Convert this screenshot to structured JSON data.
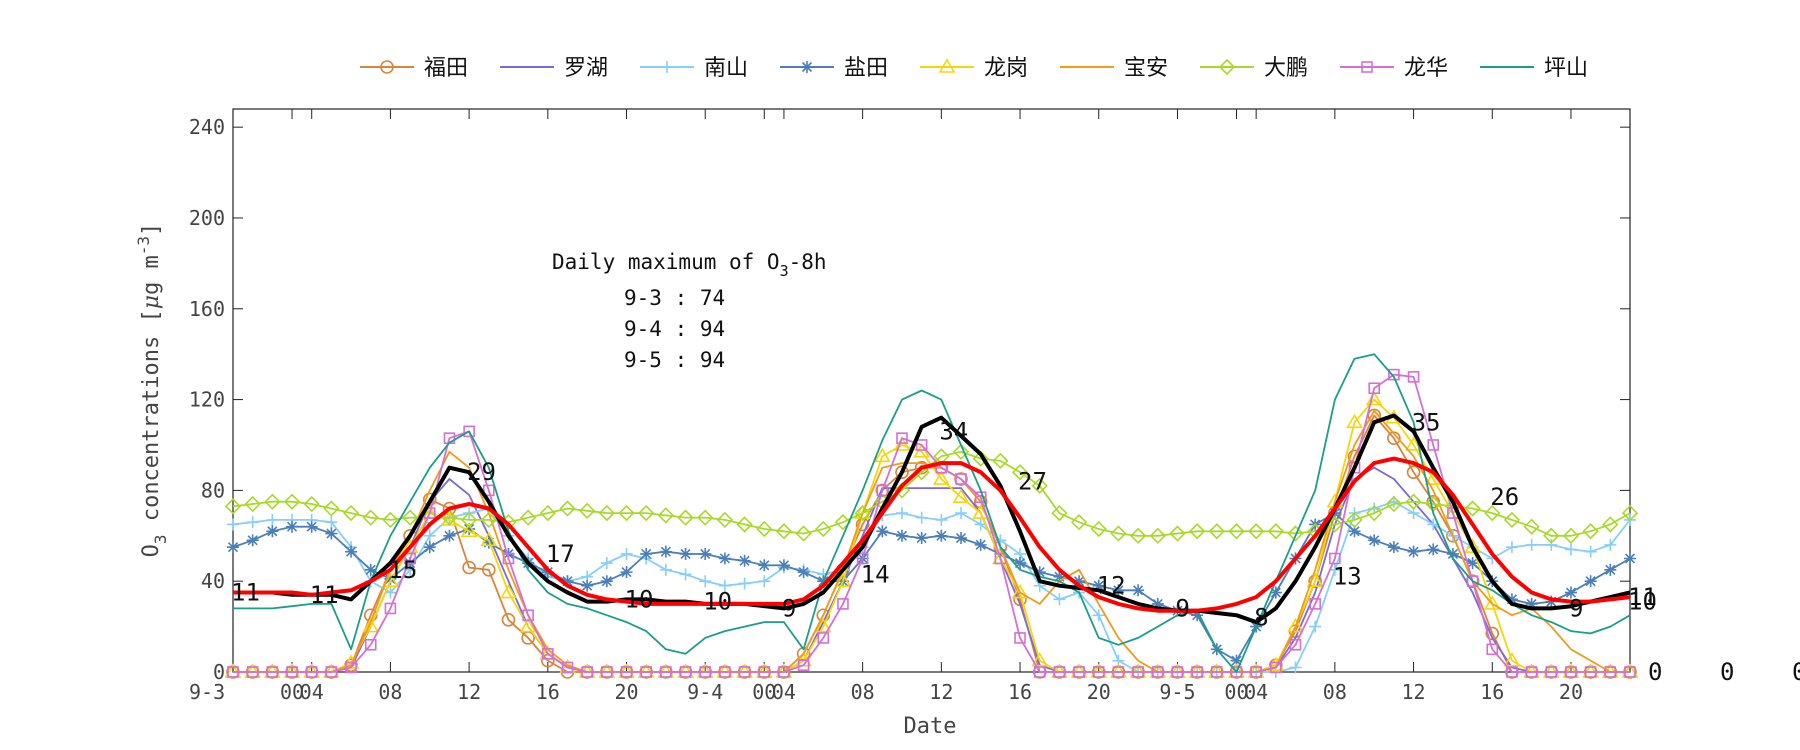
{
  "chart_data": {
    "type": "line",
    "xlabel": "Date",
    "ylabel_main": "O",
    "ylabel_sub": "3",
    "ylabel_rest": " concentrations [",
    "ylabel_mu": "μ",
    "ylabel_unit": "g m",
    "ylabel_sup": "-3",
    "ylabel_close": "]",
    "ylim": [
      0,
      248
    ],
    "yticks": [
      0,
      40,
      80,
      120,
      160,
      200,
      240
    ],
    "xlim": [
      0,
      71
    ],
    "xticks": [
      {
        "x": 0,
        "label": "9-3"
      },
      {
        "x": 3,
        "label": "00"
      },
      {
        "x": 4,
        "label": "04"
      },
      {
        "x": 8,
        "label": "08"
      },
      {
        "x": 12,
        "label": "12"
      },
      {
        "x": 16,
        "label": "16"
      },
      {
        "x": 20,
        "label": "20"
      },
      {
        "x": 24,
        "label": "9-4"
      },
      {
        "x": 27,
        "label": "00"
      },
      {
        "x": 28,
        "label": "04"
      },
      {
        "x": 32,
        "label": "08"
      },
      {
        "x": 36,
        "label": "12"
      },
      {
        "x": 40,
        "label": "16"
      },
      {
        "x": 44,
        "label": "20"
      },
      {
        "x": 48,
        "label": "9-5"
      },
      {
        "x": 51,
        "label": "00"
      },
      {
        "x": 52,
        "label": "04"
      },
      {
        "x": 56,
        "label": "08"
      },
      {
        "x": 60,
        "label": "12"
      },
      {
        "x": 64,
        "label": "16"
      },
      {
        "x": 68,
        "label": "20"
      }
    ],
    "grid": false,
    "legend_position": "top",
    "annotation": {
      "title_main": "Daily maximum of O",
      "title_sub": "3",
      "title_rest": "-8h",
      "lines": [
        "9-3 : 74",
        "9-4 : 94",
        "9-5 : 94"
      ]
    },
    "series": [
      {
        "name": "福田",
        "color": "#d9843b",
        "marker": "circle",
        "values": [
          0,
          0,
          0,
          0,
          0,
          0,
          3,
          25,
          45,
          60,
          76,
          72,
          46,
          45,
          23,
          15,
          5,
          0,
          0,
          0,
          0,
          0,
          0,
          0,
          0,
          0,
          0,
          0,
          0,
          8,
          25,
          45,
          65,
          80,
          88,
          90,
          90,
          85,
          75,
          55,
          32,
          0,
          0,
          0,
          0,
          0,
          0,
          0,
          0,
          0,
          0,
          0,
          0,
          3,
          18,
          40,
          70,
          95,
          113,
          103,
          88,
          75,
          60,
          40,
          17,
          0,
          0,
          0,
          0,
          0,
          0,
          0,
          0,
          0,
          0,
          0,
          0,
          0,
          6
        ]
      },
      {
        "name": "罗湖",
        "color": "#7b68d9",
        "marker": "none",
        "values": [
          0,
          0,
          0,
          0,
          0,
          0,
          2,
          20,
          40,
          55,
          75,
          85,
          78,
          60,
          40,
          20,
          8,
          2,
          0,
          0,
          0,
          0,
          0,
          0,
          0,
          0,
          0,
          0,
          0,
          5,
          22,
          40,
          60,
          81,
          81,
          81,
          81,
          81,
          70,
          50,
          30,
          3,
          0,
          0,
          0,
          0,
          0,
          0,
          0,
          0,
          0,
          0,
          0,
          2,
          15,
          35,
          65,
          85,
          90,
          85,
          75,
          65,
          50,
          35,
          15,
          2,
          0,
          0,
          0,
          0,
          0,
          0,
          0,
          0,
          0,
          0,
          0,
          0,
          4
        ]
      },
      {
        "name": "南山",
        "color": "#87cefa",
        "marker": "plus",
        "values": [
          65,
          66,
          67,
          67,
          67,
          66,
          55,
          40,
          35,
          45,
          60,
          68,
          70,
          72,
          60,
          50,
          42,
          40,
          42,
          48,
          52,
          50,
          45,
          43,
          40,
          38,
          39,
          40,
          46,
          45,
          43,
          45,
          55,
          69,
          70,
          68,
          67,
          70,
          65,
          58,
          52,
          38,
          32,
          35,
          25,
          5,
          0,
          0,
          0,
          0,
          0,
          0,
          0,
          0,
          2,
          20,
          45,
          70,
          72,
          75,
          70,
          65,
          60,
          55,
          50,
          55,
          56,
          56,
          54,
          53,
          56,
          67,
          64,
          40,
          20,
          12,
          0,
          0
        ]
      },
      {
        "name": "盐田",
        "color": "#4a7fb8",
        "marker": "star",
        "values": [
          55,
          58,
          62,
          64,
          64,
          61,
          53,
          45,
          41,
          48,
          55,
          60,
          63,
          57,
          52,
          48,
          44,
          40,
          38,
          40,
          44,
          52,
          53,
          52,
          52,
          50,
          49,
          47,
          47,
          44,
          40,
          40,
          50,
          62,
          60,
          59,
          60,
          59,
          56,
          52,
          48,
          44,
          42,
          40,
          38,
          36,
          36,
          30,
          27,
          25,
          10,
          5,
          20,
          35,
          50,
          65,
          70,
          62,
          58,
          55,
          53,
          54,
          52,
          48,
          40,
          32,
          30,
          31,
          35,
          40,
          45,
          50,
          52,
          50,
          47,
          40,
          57,
          40
        ]
      },
      {
        "name": "龙岗",
        "color": "#f5d60a",
        "marker": "triangle",
        "values": [
          0,
          0,
          0,
          0,
          0,
          0,
          4,
          20,
          40,
          55,
          70,
          67,
          62,
          58,
          35,
          20,
          8,
          2,
          0,
          0,
          0,
          0,
          0,
          0,
          0,
          0,
          0,
          0,
          0,
          5,
          20,
          40,
          70,
          95,
          100,
          97,
          85,
          77,
          70,
          50,
          35,
          5,
          0,
          0,
          0,
          0,
          0,
          0,
          0,
          0,
          0,
          0,
          0,
          3,
          20,
          40,
          75,
          110,
          120,
          112,
          100,
          85,
          70,
          55,
          30,
          5,
          0,
          0,
          0,
          0,
          0,
          0,
          0,
          0,
          0,
          0,
          0,
          0,
          15
        ]
      },
      {
        "name": "宝安",
        "color": "#f29a1a",
        "marker": "none",
        "values": [
          0,
          0,
          0,
          0,
          0,
          0,
          3,
          22,
          45,
          60,
          80,
          97,
          90,
          70,
          45,
          25,
          10,
          3,
          0,
          0,
          0,
          0,
          0,
          0,
          0,
          0,
          0,
          0,
          0,
          8,
          25,
          45,
          70,
          90,
          92,
          92,
          90,
          85,
          75,
          55,
          35,
          30,
          40,
          45,
          30,
          15,
          5,
          0,
          0,
          0,
          0,
          0,
          0,
          2,
          20,
          45,
          75,
          100,
          115,
          105,
          95,
          80,
          60,
          40,
          30,
          25,
          28,
          20,
          10,
          5,
          0,
          0,
          0,
          0,
          0,
          0,
          0,
          0,
          2
        ]
      },
      {
        "name": "大鹏",
        "color": "#a8d92a",
        "marker": "diamond",
        "values": [
          73,
          74,
          75,
          75,
          74,
          72,
          70,
          68,
          67,
          68,
          68,
          68,
          67,
          67,
          66,
          68,
          70,
          72,
          71,
          70,
          70,
          70,
          69,
          68,
          68,
          67,
          65,
          63,
          62,
          61,
          63,
          66,
          70,
          75,
          80,
          88,
          95,
          97,
          94,
          93,
          88,
          82,
          70,
          66,
          63,
          61,
          60,
          60,
          61,
          62,
          62,
          62,
          62,
          62,
          61,
          62,
          65,
          67,
          70,
          74,
          75,
          74,
          73,
          72,
          70,
          67,
          64,
          60,
          60,
          62,
          65,
          70,
          75,
          80,
          85,
          90,
          93,
          93,
          95,
          101
        ]
      },
      {
        "name": "龙华",
        "color": "#d56fd5",
        "marker": "square",
        "values": [
          0,
          0,
          0,
          0,
          0,
          0,
          2,
          12,
          28,
          50,
          70,
          103,
          106,
          80,
          50,
          25,
          8,
          2,
          0,
          0,
          0,
          0,
          0,
          0,
          0,
          0,
          0,
          0,
          0,
          3,
          15,
          30,
          50,
          80,
          103,
          100,
          90,
          85,
          77,
          50,
          15,
          0,
          0,
          0,
          0,
          0,
          0,
          0,
          0,
          0,
          0,
          0,
          0,
          2,
          12,
          30,
          50,
          90,
          125,
          131,
          130,
          100,
          70,
          40,
          10,
          0,
          0,
          0,
          0,
          0,
          0,
          0,
          0,
          0,
          0,
          0,
          0,
          0,
          3
        ]
      },
      {
        "name": "坪山",
        "color": "#1a9e8a",
        "marker": "none",
        "values": [
          28,
          28,
          28,
          29,
          30,
          30,
          10,
          40,
          60,
          75,
          90,
          101,
          106,
          90,
          62,
          45,
          35,
          30,
          28,
          25,
          22,
          18,
          10,
          8,
          15,
          18,
          20,
          22,
          22,
          10,
          40,
          60,
          80,
          102,
          120,
          124,
          120,
          100,
          80,
          55,
          45,
          42,
          40,
          35,
          15,
          12,
          15,
          20,
          25,
          27,
          10,
          0,
          20,
          40,
          60,
          80,
          120,
          138,
          140,
          130,
          110,
          70,
          50,
          40,
          36,
          30,
          25,
          22,
          18,
          17,
          20,
          25,
          30,
          32,
          35,
          40,
          28,
          22,
          30
        ]
      },
      {
        "name": "",
        "color": "#000000",
        "marker": "none",
        "width": 4,
        "values": [
          35,
          35,
          35,
          34,
          34,
          34,
          32,
          40,
          48,
          60,
          75,
          90,
          88,
          75,
          60,
          48,
          40,
          35,
          31,
          31,
          32,
          32,
          31,
          31,
          30,
          30,
          30,
          29,
          28,
          30,
          35,
          45,
          55,
          72,
          88,
          108,
          112,
          104,
          96,
          82,
          62,
          40,
          38,
          37,
          36,
          33,
          30,
          28,
          27,
          27,
          26,
          25,
          22,
          28,
          40,
          55,
          72,
          90,
          110,
          113,
          106,
          90,
          75,
          55,
          40,
          30,
          28,
          28,
          29,
          31,
          33,
          35,
          35,
          35,
          33,
          32,
          40
        ]
      },
      {
        "name": "",
        "color": "#ff0000",
        "marker": "none",
        "width": 4,
        "values": [
          35,
          35,
          35,
          35,
          34,
          35,
          36,
          40,
          45,
          55,
          65,
          72,
          74,
          72,
          65,
          55,
          45,
          38,
          34,
          32,
          31,
          30,
          30,
          30,
          30,
          30,
          30,
          30,
          30,
          32,
          38,
          48,
          58,
          70,
          82,
          90,
          92,
          92,
          88,
          80,
          68,
          55,
          45,
          38,
          33,
          30,
          28,
          27,
          27,
          27,
          28,
          30,
          33,
          40,
          50,
          60,
          72,
          84,
          92,
          94,
          92,
          88,
          78,
          65,
          52,
          42,
          35,
          32,
          31,
          31,
          32,
          33,
          33,
          33,
          30,
          26,
          22
        ]
      }
    ],
    "data_labels": [
      {
        "x": 0,
        "y": 35,
        "label": "11"
      },
      {
        "x": 4,
        "y": 34,
        "label": "11"
      },
      {
        "x": 8,
        "y": 45,
        "label": "15"
      },
      {
        "x": 12,
        "y": 88,
        "label": "29"
      },
      {
        "x": 16,
        "y": 52,
        "label": "17"
      },
      {
        "x": 20,
        "y": 32,
        "label": "10"
      },
      {
        "x": 24,
        "y": 31,
        "label": "10"
      },
      {
        "x": 28,
        "y": 28,
        "label": "9"
      },
      {
        "x": 32,
        "y": 43,
        "label": "14"
      },
      {
        "x": 36,
        "y": 106,
        "label": "34"
      },
      {
        "x": 40,
        "y": 84,
        "label": "27"
      },
      {
        "x": 44,
        "y": 38,
        "label": "12"
      },
      {
        "x": 48,
        "y": 28,
        "label": "9"
      },
      {
        "x": 52,
        "y": 24,
        "label": "8"
      },
      {
        "x": 56,
        "y": 42,
        "label": "13"
      },
      {
        "x": 60,
        "y": 110,
        "label": "35"
      },
      {
        "x": 64,
        "y": 77,
        "label": "26"
      },
      {
        "x": 68,
        "y": 28,
        "label": "9"
      },
      {
        "x": 72,
        "y": 31,
        "label": "10"
      },
      {
        "x": 76,
        "y": 33,
        "label": "11"
      }
    ],
    "overflow_labels": [
      "0",
      "0",
      "0"
    ]
  }
}
